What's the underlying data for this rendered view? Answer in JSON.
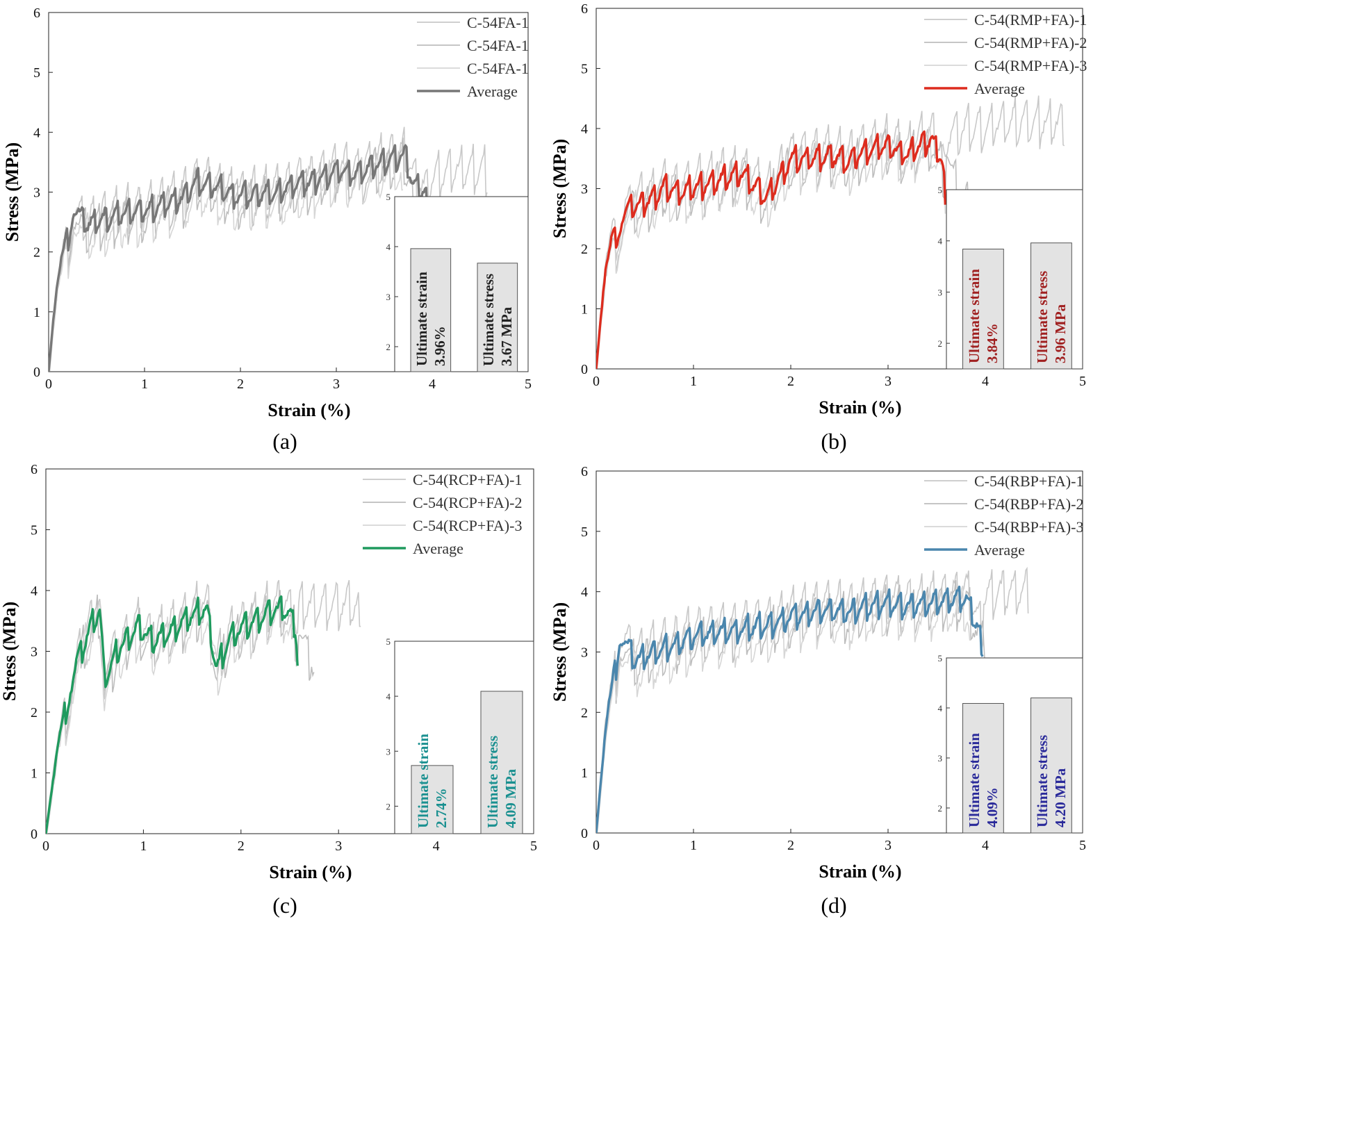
{
  "chart_data": [
    {
      "type": "line",
      "panel": "a",
      "caption": "(a)",
      "xlabel": "Strain (%)",
      "ylabel": "Stress (MPa)",
      "xlim": [
        0,
        5
      ],
      "ylim": [
        0,
        6
      ],
      "xticks": [
        "0",
        "1",
        "2",
        "3",
        "4",
        "5"
      ],
      "yticks": [
        "0",
        "1",
        "2",
        "3",
        "4",
        "5",
        "6"
      ],
      "legend": "top-right",
      "avg_color": "#777777",
      "end_strain": 3.96,
      "series": [
        {
          "name": "C-54FA-1",
          "kind": "specimen",
          "color": "#c8c8c8",
          "end": 4.58,
          "offset": 0.07,
          "extra_peak": 3.42
        },
        {
          "name": "C-54FA-1",
          "kind": "specimen",
          "color": "#bdbdbd",
          "end": 3.82,
          "offset": -0.12,
          "extra_peak": 0
        },
        {
          "name": "C-54FA-1",
          "kind": "specimen",
          "color": "#d6d6d6",
          "end": 3.7,
          "offset": -0.2,
          "extra_peak": 0
        },
        {
          "name": "Average",
          "kind": "average",
          "color": "#777777",
          "end": 3.96,
          "offset": 0,
          "extra_peak": 0
        }
      ],
      "x": [
        0,
        0.05,
        0.1,
        0.18,
        0.26,
        0.4,
        0.6,
        0.8,
        1.0,
        1.2,
        1.4,
        1.55,
        1.8,
        2.0,
        2.2,
        2.4,
        2.6,
        2.8,
        3.0,
        3.2,
        3.4,
        3.6,
        3.72,
        3.8,
        3.96
      ],
      "y": [
        0,
        0.9,
        1.6,
        2.3,
        2.83,
        2.5,
        2.6,
        2.7,
        2.72,
        2.85,
        2.95,
        3.22,
        3.1,
        2.95,
        3.0,
        3.05,
        3.18,
        3.25,
        3.4,
        3.35,
        3.5,
        3.6,
        3.65,
        3.2,
        3.0
      ],
      "inset": {
        "ylim": [
          1.5,
          5
        ],
        "yticks": [
          "2",
          "3",
          "4",
          "5"
        ],
        "label_color": "#222222",
        "bars": [
          {
            "label": "Ultimate strain",
            "value_label": "3.96%",
            "value": 3.96
          },
          {
            "label": "Ultimate stress",
            "value_label": "3.67 MPa",
            "value": 3.67
          }
        ]
      }
    },
    {
      "type": "line",
      "panel": "b",
      "caption": "(b)",
      "xlabel": "Strain (%)",
      "ylabel": "Stress (MPa)",
      "xlim": [
        0,
        5
      ],
      "ylim": [
        0,
        6
      ],
      "xticks": [
        "0",
        "1",
        "2",
        "3",
        "4",
        "5"
      ],
      "yticks": [
        "0",
        "1",
        "2",
        "3",
        "4",
        "5",
        "6"
      ],
      "legend": "top-right",
      "avg_color": "#dd2c1e",
      "end_strain": 3.6,
      "series": [
        {
          "name": "C-54(RMP+FA)-1",
          "kind": "specimen",
          "color": "#c8c8c8",
          "end": 4.82,
          "offset": 0.12,
          "extra_peak": 4.15
        },
        {
          "name": "C-54(RMP+FA)-2",
          "kind": "specimen",
          "color": "#bdbdbd",
          "end": 3.84,
          "offset": -0.1,
          "extra_peak": 0
        },
        {
          "name": "C-54(RMP+FA)-3",
          "kind": "specimen",
          "color": "#d6d6d6",
          "end": 3.6,
          "offset": -0.15,
          "extra_peak": 0
        },
        {
          "name": "Average",
          "kind": "average",
          "color": "#dd2c1e",
          "end": 3.6,
          "offset": 0,
          "extra_peak": 0
        }
      ],
      "x": [
        0,
        0.05,
        0.1,
        0.17,
        0.3,
        0.5,
        0.7,
        0.9,
        1.1,
        1.3,
        1.5,
        1.75,
        2.0,
        2.2,
        2.4,
        2.6,
        2.8,
        3.0,
        3.2,
        3.35,
        3.45,
        3.55,
        3.6
      ],
      "y": [
        0,
        0.9,
        1.7,
        2.3,
        2.7,
        2.8,
        3.05,
        3.0,
        3.1,
        3.2,
        3.3,
        2.9,
        3.5,
        3.55,
        3.6,
        3.5,
        3.7,
        3.75,
        3.6,
        3.8,
        3.85,
        3.55,
        3.0
      ],
      "inset": {
        "ylim": [
          1.5,
          5
        ],
        "yticks": [
          "2",
          "3",
          "4",
          "5"
        ],
        "label_color": "#a02020",
        "bars": [
          {
            "label": "Ultimate strain",
            "value_label": "3.84%",
            "value": 3.84
          },
          {
            "label": "Ultimate stress",
            "value_label": "3.96 MPa",
            "value": 3.96
          }
        ]
      }
    },
    {
      "type": "line",
      "panel": "c",
      "caption": "(c)",
      "xlabel": "Strain (%)",
      "ylabel": "Stress (MPa)",
      "xlim": [
        0,
        5
      ],
      "ylim": [
        0,
        6
      ],
      "xticks": [
        "0",
        "1",
        "2",
        "3",
        "4",
        "5"
      ],
      "yticks": [
        "0",
        "1",
        "2",
        "3",
        "4",
        "5",
        "6"
      ],
      "legend": "top-right",
      "avg_color": "#1f9a5e",
      "end_strain": 2.59,
      "series": [
        {
          "name": "C-54(RCP+FA)-1",
          "kind": "specimen",
          "color": "#c8c8c8",
          "end": 3.23,
          "offset": 0.1,
          "extra_peak": 3.82
        },
        {
          "name": "C-54(RCP+FA)-2",
          "kind": "specimen",
          "color": "#bdbdbd",
          "end": 2.75,
          "offset": -0.1,
          "extra_peak": 0
        },
        {
          "name": "C-54(RCP+FA)-3",
          "kind": "specimen",
          "color": "#d6d6d6",
          "end": 2.58,
          "offset": -0.15,
          "extra_peak": 0
        },
        {
          "name": "Average",
          "kind": "average",
          "color": "#1f9a5e",
          "end": 2.59,
          "offset": 0,
          "extra_peak": 0
        }
      ],
      "x": [
        0,
        0.1,
        0.2,
        0.3,
        0.45,
        0.55,
        0.6,
        0.75,
        0.95,
        1.1,
        1.3,
        1.5,
        1.65,
        1.75,
        1.9,
        2.1,
        2.3,
        2.45,
        2.55,
        2.59
      ],
      "y": [
        0,
        1.2,
        2.2,
        2.8,
        3.4,
        3.72,
        2.6,
        3.1,
        3.45,
        3.2,
        3.4,
        3.65,
        3.75,
        2.75,
        3.3,
        3.5,
        3.7,
        3.75,
        3.5,
        3.05
      ],
      "inset": {
        "ylim": [
          1.5,
          5
        ],
        "yticks": [
          "2",
          "3",
          "4",
          "5"
        ],
        "label_color": "#1a9090",
        "bars": [
          {
            "label": "Ultimate strain",
            "value_label": "2.74%",
            "value": 2.74
          },
          {
            "label": "Ultimate stress",
            "value_label": "4.09 MPa",
            "value": 4.09
          }
        ]
      }
    },
    {
      "type": "line",
      "panel": "d",
      "caption": "(d)",
      "xlabel": "Strain (%)",
      "ylabel": "Stress (MPa)",
      "xlim": [
        0,
        5
      ],
      "ylim": [
        0,
        6
      ],
      "xticks": [
        "0",
        "1",
        "2",
        "3",
        "4",
        "5"
      ],
      "yticks": [
        "0",
        "1",
        "2",
        "3",
        "4",
        "5",
        "6"
      ],
      "legend": "top-right",
      "avg_color": "#4a86ad",
      "end_strain": 3.98,
      "series": [
        {
          "name": "C-54(RBP+FA)-1",
          "kind": "specimen",
          "color": "#c8c8c8",
          "end": 4.45,
          "offset": 0.12,
          "extra_peak": 4.05
        },
        {
          "name": "C-54(RBP+FA)-2",
          "kind": "specimen",
          "color": "#bdbdbd",
          "end": 4.0,
          "offset": -0.1,
          "extra_peak": 0
        },
        {
          "name": "C-54(RBP+FA)-3",
          "kind": "specimen",
          "color": "#d6d6d6",
          "end": 3.85,
          "offset": -0.2,
          "extra_peak": 0
        },
        {
          "name": "Average",
          "kind": "average",
          "color": "#4a86ad",
          "end": 3.98,
          "offset": 0,
          "extra_peak": 0
        }
      ],
      "x": [
        0,
        0.1,
        0.24,
        0.4,
        0.6,
        0.8,
        1.0,
        1.2,
        1.4,
        1.6,
        1.8,
        2.0,
        2.2,
        2.4,
        2.6,
        2.8,
        3.0,
        3.2,
        3.4,
        3.6,
        3.8,
        3.9,
        3.98
      ],
      "y": [
        0,
        1.8,
        3.4,
        2.9,
        3.05,
        3.15,
        3.3,
        3.35,
        3.4,
        3.45,
        3.5,
        3.6,
        3.7,
        3.75,
        3.7,
        3.8,
        3.85,
        3.8,
        3.85,
        3.9,
        3.95,
        3.55,
        3.3
      ],
      "inset": {
        "ylim": [
          1.5,
          5
        ],
        "yticks": [
          "2",
          "3",
          "4",
          "5"
        ],
        "label_color": "#2a2a9a",
        "bars": [
          {
            "label": "Ultimate strain",
            "value_label": "4.09%",
            "value": 4.09
          },
          {
            "label": "Ultimate stress",
            "value_label": "4.20 MPa",
            "value": 4.2
          }
        ]
      }
    }
  ]
}
